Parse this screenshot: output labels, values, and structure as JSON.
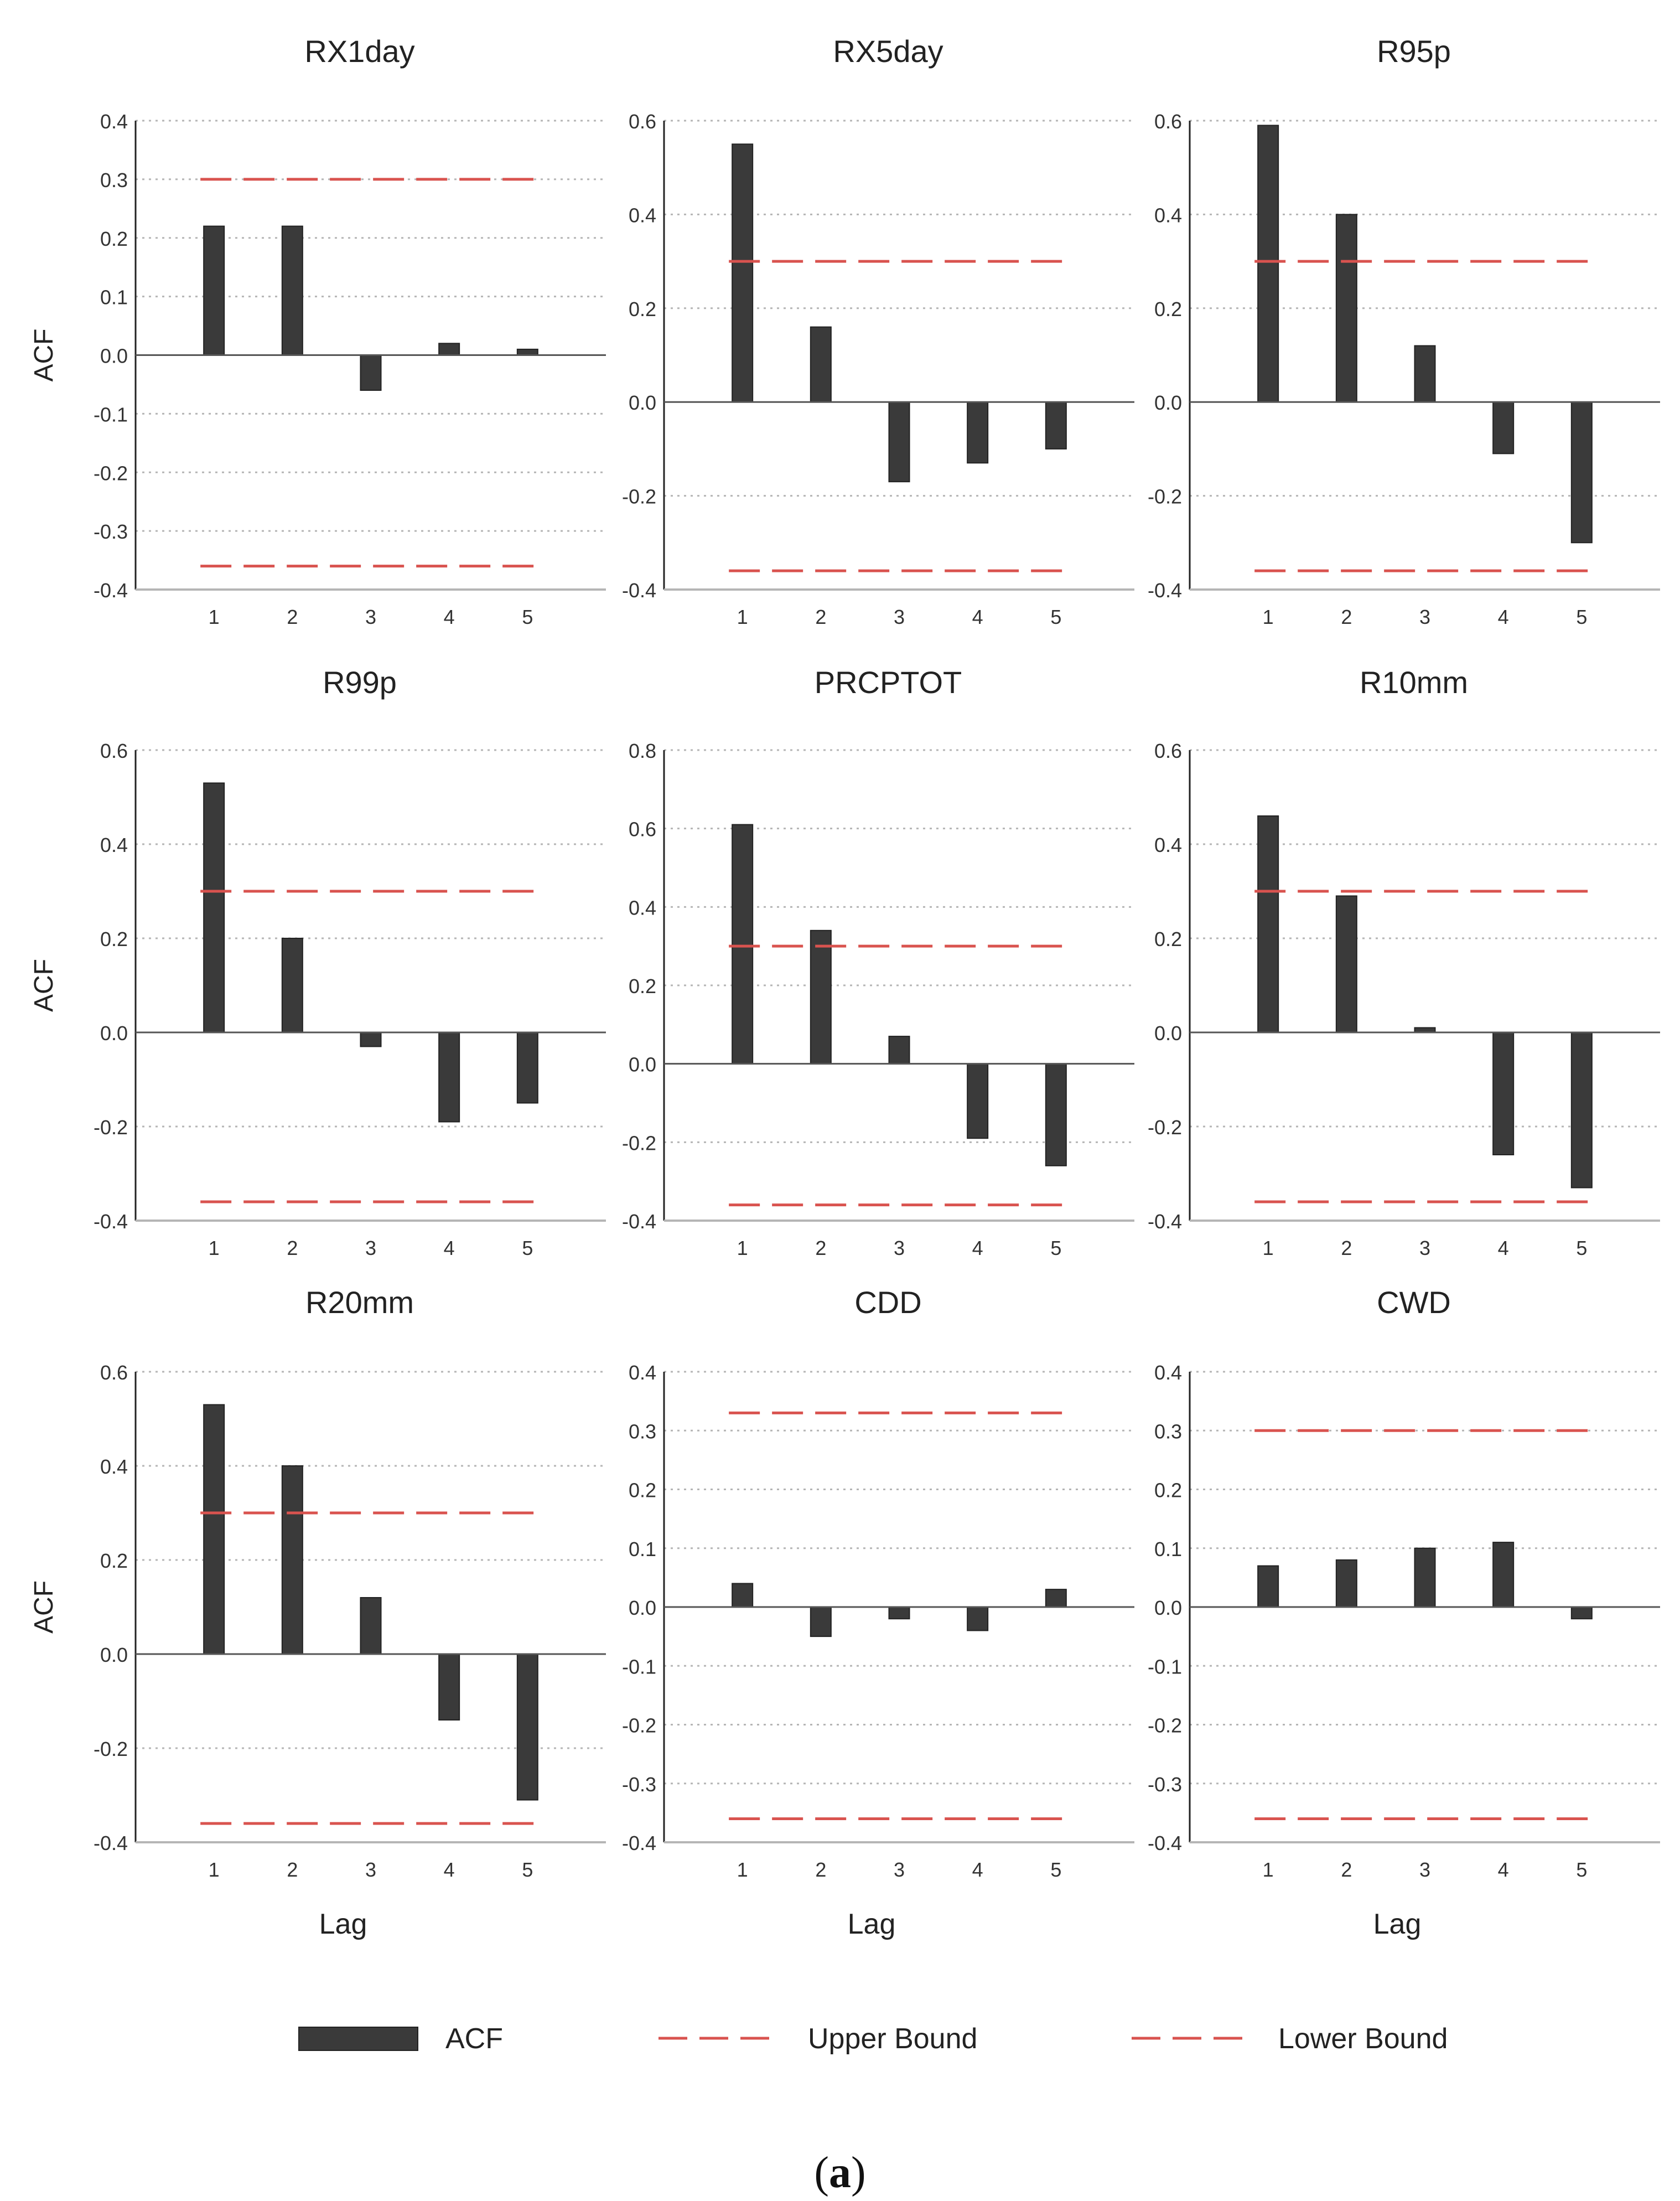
{
  "figure": {
    "caption_open": "(",
    "caption_label": "a",
    "caption_close": ")",
    "colors": {
      "bar": "#3a3a3a",
      "upper": "#d9534f",
      "lower": "#d9534f",
      "grid": "#b5b5b5",
      "axis": "#222222",
      "zero": "#555555"
    }
  },
  "legend": [
    {
      "key": "acf",
      "label": "ACF",
      "kind": "bar"
    },
    {
      "key": "upper",
      "label": "Upper Bound",
      "kind": "dash"
    },
    {
      "key": "lower",
      "label": "Lower Bound",
      "kind": "dash"
    }
  ],
  "chart_data": [
    {
      "type": "bar",
      "title": "RX1day",
      "xlabel": "",
      "ylabel": "ACF",
      "categories": [
        "1",
        "2",
        "3",
        "4",
        "5"
      ],
      "series": [
        {
          "name": "ACF",
          "values": [
            0.22,
            0.22,
            -0.06,
            0.02,
            0.01
          ]
        }
      ],
      "upper_bound": 0.3,
      "lower_bound": -0.36,
      "ylim": [
        -0.4,
        0.4
      ],
      "yticks": [
        "0.4",
        "0.3",
        "0.2",
        "0.1",
        "0.0",
        "-0.1",
        "-0.2",
        "-0.3",
        "-0.4"
      ],
      "grid": true
    },
    {
      "type": "bar",
      "title": "RX5day",
      "xlabel": "",
      "ylabel": "",
      "categories": [
        "1",
        "2",
        "3",
        "4",
        "5"
      ],
      "series": [
        {
          "name": "ACF",
          "values": [
            0.55,
            0.16,
            -0.17,
            -0.13,
            -0.1
          ]
        }
      ],
      "upper_bound": 0.3,
      "lower_bound": -0.36,
      "ylim": [
        -0.4,
        0.6
      ],
      "yticks": [
        "0.6",
        "0.4",
        "0.2",
        "0.0",
        "-0.2",
        "-0.4"
      ],
      "grid": true
    },
    {
      "type": "bar",
      "title": "R95p",
      "xlabel": "",
      "ylabel": "",
      "categories": [
        "1",
        "2",
        "3",
        "4",
        "5"
      ],
      "series": [
        {
          "name": "ACF",
          "values": [
            0.59,
            0.4,
            0.12,
            -0.11,
            -0.3
          ]
        }
      ],
      "upper_bound": 0.3,
      "lower_bound": -0.36,
      "ylim": [
        -0.4,
        0.6
      ],
      "yticks": [
        "0.6",
        "0.4",
        "0.2",
        "0.0",
        "-0.2",
        "-0.4"
      ],
      "grid": true
    },
    {
      "type": "bar",
      "title": "R99p",
      "xlabel": "",
      "ylabel": "ACF",
      "categories": [
        "1",
        "2",
        "3",
        "4",
        "5"
      ],
      "series": [
        {
          "name": "ACF",
          "values": [
            0.53,
            0.2,
            -0.03,
            -0.19,
            -0.15
          ]
        }
      ],
      "upper_bound": 0.3,
      "lower_bound": -0.36,
      "ylim": [
        -0.4,
        0.6
      ],
      "yticks": [
        "0.6",
        "0.4",
        "0.2",
        "0.0",
        "-0.2",
        "-0.4"
      ],
      "grid": true
    },
    {
      "type": "bar",
      "title": "PRCPTOT",
      "xlabel": "",
      "ylabel": "",
      "categories": [
        "1",
        "2",
        "3",
        "4",
        "5"
      ],
      "series": [
        {
          "name": "ACF",
          "values": [
            0.61,
            0.34,
            0.07,
            -0.19,
            -0.26
          ]
        }
      ],
      "upper_bound": 0.3,
      "lower_bound": -0.36,
      "ylim": [
        -0.4,
        0.8
      ],
      "yticks": [
        "0.8",
        "0.6",
        "0.4",
        "0.2",
        "0.0",
        "-0.2",
        "-0.4"
      ],
      "grid": true
    },
    {
      "type": "bar",
      "title": "R10mm",
      "xlabel": "",
      "ylabel": "",
      "categories": [
        "1",
        "2",
        "3",
        "4",
        "5"
      ],
      "series": [
        {
          "name": "ACF",
          "values": [
            0.46,
            0.29,
            0.01,
            -0.26,
            -0.33
          ]
        }
      ],
      "upper_bound": 0.3,
      "lower_bound": -0.36,
      "ylim": [
        -0.4,
        0.6
      ],
      "yticks": [
        "0.6",
        "0.4",
        "0.2",
        "0.0",
        "-0.2",
        "-0.4"
      ],
      "grid": true
    },
    {
      "type": "bar",
      "title": "R20mm",
      "xlabel": "Lag",
      "ylabel": "ACF",
      "categories": [
        "1",
        "2",
        "3",
        "4",
        "5"
      ],
      "series": [
        {
          "name": "ACF",
          "values": [
            0.53,
            0.4,
            0.12,
            -0.14,
            -0.31
          ]
        }
      ],
      "upper_bound": 0.3,
      "lower_bound": -0.36,
      "ylim": [
        -0.4,
        0.6
      ],
      "yticks": [
        "0.6",
        "0.4",
        "0.2",
        "0.0",
        "-0.2",
        "-0.4"
      ],
      "grid": true
    },
    {
      "type": "bar",
      "title": "CDD",
      "xlabel": "Lag",
      "ylabel": "",
      "categories": [
        "1",
        "2",
        "3",
        "4",
        "5"
      ],
      "series": [
        {
          "name": "ACF",
          "values": [
            0.04,
            -0.05,
            -0.02,
            -0.04,
            0.03
          ]
        }
      ],
      "upper_bound": 0.33,
      "lower_bound": -0.36,
      "ylim": [
        -0.4,
        0.4
      ],
      "yticks": [
        "0.4",
        "0.3",
        "0.2",
        "0.1",
        "0.0",
        "-0.1",
        "-0.2",
        "-0.3",
        "-0.4"
      ],
      "grid": true
    },
    {
      "type": "bar",
      "title": "CWD",
      "xlabel": "Lag",
      "ylabel": "",
      "categories": [
        "1",
        "2",
        "3",
        "4",
        "5"
      ],
      "series": [
        {
          "name": "ACF",
          "values": [
            0.07,
            0.08,
            0.1,
            0.11,
            -0.02
          ]
        }
      ],
      "upper_bound": 0.3,
      "lower_bound": -0.36,
      "ylim": [
        -0.4,
        0.4
      ],
      "yticks": [
        "0.4",
        "0.3",
        "0.2",
        "0.1",
        "0.0",
        "-0.1",
        "-0.2",
        "-0.3",
        "-0.4"
      ],
      "grid": true
    }
  ]
}
